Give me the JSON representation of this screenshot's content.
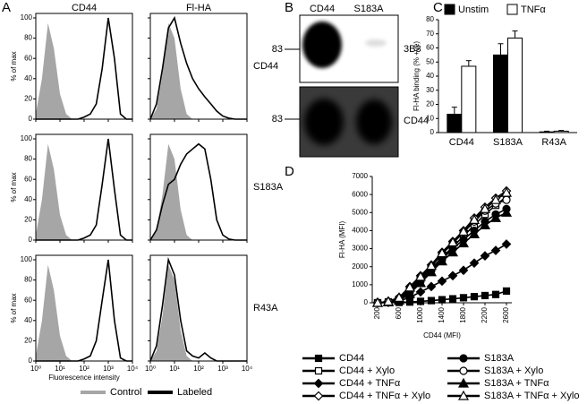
{
  "chart_data": [
    {
      "type": "area",
      "panel_label": "A",
      "column_titles": [
        "CD44",
        "Fl-HA"
      ],
      "row_titles": [
        "CD44",
        "S183A",
        "R43A"
      ],
      "y_label": "% of max",
      "x_label": "Fluorescence intensity",
      "log_x": true,
      "xlim": [
        1,
        10000
      ],
      "xticks": [
        {
          "value": 1,
          "label": "10⁰"
        },
        {
          "value": 10,
          "label": "10¹"
        },
        {
          "value": 100,
          "label": "10²"
        },
        {
          "value": 1000,
          "label": "10³"
        },
        {
          "value": 10000,
          "label": "10⁴"
        }
      ],
      "ylim": [
        0,
        100
      ],
      "yticks": [
        0,
        20,
        40,
        60,
        80,
        100
      ],
      "x": [
        1,
        1.8,
        3.2,
        5.6,
        10,
        18,
        32,
        56,
        100,
        180,
        320,
        560,
        1000,
        1800,
        3200,
        5600,
        10000
      ],
      "series": [
        {
          "name": "Control",
          "color": "#a6a6a6"
        },
        {
          "name": "Labeled",
          "color": "#000000"
        }
      ],
      "panels": [
        [
          [
            5,
            40,
            95,
            70,
            25,
            5,
            0,
            0,
            0,
            0,
            0,
            0,
            0,
            0,
            0,
            0,
            0
          ],
          [
            0,
            0,
            0,
            0,
            0,
            0,
            0,
            0,
            2,
            5,
            15,
            50,
            100,
            60,
            5,
            0,
            0
          ]
        ],
        [
          [
            0,
            10,
            45,
            95,
            80,
            30,
            5,
            0,
            0,
            0,
            0,
            0,
            0,
            0,
            0,
            0,
            0
          ],
          [
            0,
            15,
            50,
            90,
            100,
            75,
            55,
            40,
            30,
            22,
            15,
            8,
            3,
            1,
            0,
            0,
            0
          ]
        ],
        [
          [
            5,
            40,
            95,
            70,
            25,
            5,
            0,
            0,
            0,
            0,
            0,
            0,
            0,
            0,
            0,
            0,
            0
          ],
          [
            0,
            0,
            0,
            0,
            0,
            0,
            0,
            0,
            2,
            5,
            15,
            55,
            100,
            50,
            5,
            0,
            0
          ]
        ],
        [
          [
            0,
            10,
            45,
            95,
            80,
            30,
            5,
            0,
            0,
            0,
            0,
            0,
            0,
            0,
            0,
            0,
            0
          ],
          [
            0,
            10,
            35,
            55,
            60,
            75,
            85,
            90,
            95,
            90,
            60,
            20,
            5,
            1,
            0,
            0,
            0
          ]
        ],
        [
          [
            5,
            40,
            95,
            70,
            25,
            5,
            0,
            0,
            0,
            0,
            0,
            0,
            0,
            0,
            0,
            0,
            0
          ],
          [
            0,
            0,
            0,
            0,
            0,
            0,
            0,
            0,
            2,
            5,
            20,
            60,
            100,
            40,
            3,
            0,
            0
          ]
        ],
        [
          [
            0,
            10,
            45,
            95,
            80,
            30,
            5,
            0,
            0,
            0,
            0,
            0,
            0,
            0,
            0,
            0,
            0
          ],
          [
            0,
            15,
            55,
            100,
            85,
            40,
            10,
            5,
            3,
            8,
            3,
            0,
            0,
            0,
            0,
            0,
            0
          ]
        ]
      ]
    },
    {
      "type": "bar",
      "panel_label": "C",
      "y_label": "Fl-HA binding (% +ve)",
      "categories": [
        "CD44",
        "S183A",
        "R43A"
      ],
      "ylim": [
        0,
        80
      ],
      "yticks": [
        0,
        10,
        20,
        30,
        40,
        50,
        60,
        70,
        80
      ],
      "series": [
        {
          "name": "Unstim",
          "color": "#000000",
          "values": [
            13,
            55,
            0.5
          ],
          "errors": [
            5,
            8,
            0.5
          ]
        },
        {
          "name": "TNFα",
          "color": "#ffffff",
          "values": [
            47,
            67,
            1
          ],
          "errors": [
            4,
            5,
            0.5
          ]
        }
      ]
    },
    {
      "type": "line",
      "panel_label": "D",
      "x_label": "CD44 (MFI)",
      "y_label": "Fl-HA (MFI)",
      "xlim": [
        100,
        2700
      ],
      "xticks": [
        200,
        600,
        1000,
        1400,
        1800,
        2200,
        2600
      ],
      "ylim": [
        0,
        7000
      ],
      "yticks": [
        0,
        1000,
        2000,
        3000,
        4000,
        5000,
        6000,
        7000
      ],
      "x": [
        200,
        400,
        600,
        800,
        1000,
        1200,
        1400,
        1600,
        1800,
        2000,
        2200,
        2400,
        2600
      ],
      "series": [
        {
          "name": "CD44",
          "color": "#000000",
          "marker": "square",
          "fill": "filled",
          "values": [
            0,
            10,
            20,
            40,
            80,
            120,
            170,
            220,
            280,
            340,
            400,
            460,
            650
          ]
        },
        {
          "name": "CD44 + Xylo",
          "color": "#000000",
          "marker": "square",
          "fill": "open",
          "values": [
            0,
            50,
            200,
            700,
            1300,
            1900,
            2500,
            3100,
            3700,
            4300,
            4900,
            5400,
            5900
          ]
        },
        {
          "name": "CD44 + TNFα",
          "color": "#000000",
          "marker": "diamond",
          "fill": "filled",
          "values": [
            0,
            20,
            100,
            300,
            600,
            900,
            1200,
            1500,
            1800,
            2200,
            2600,
            2900,
            3250
          ]
        },
        {
          "name": "CD44 + TNFα + Xylo",
          "color": "#000000",
          "marker": "diamond",
          "fill": "open",
          "values": [
            0,
            80,
            300,
            900,
            1500,
            2100,
            2800,
            3400,
            4000,
            4700,
            5300,
            5800,
            6200
          ]
        },
        {
          "name": "S183A",
          "color": "#000000",
          "marker": "circle",
          "fill": "filled",
          "values": [
            0,
            40,
            150,
            600,
            1200,
            1800,
            2400,
            3000,
            3500,
            4000,
            4500,
            4900,
            5200
          ]
        },
        {
          "name": "S183A + Xylo",
          "color": "#000000",
          "marker": "circle",
          "fill": "open",
          "values": [
            0,
            60,
            250,
            800,
            1400,
            2000,
            2700,
            3300,
            3900,
            4500,
            5100,
            5500,
            5700
          ]
        },
        {
          "name": "S183A + TNFα",
          "color": "#000000",
          "marker": "triangle",
          "fill": "filled",
          "values": [
            0,
            30,
            120,
            500,
            1100,
            1700,
            2300,
            2800,
            3300,
            3800,
            4300,
            4700,
            5000
          ]
        },
        {
          "name": "S183A + TNFα + Xylo",
          "color": "#000000",
          "marker": "triangle",
          "fill": "open",
          "values": [
            0,
            70,
            280,
            850,
            1450,
            2050,
            2750,
            3350,
            3950,
            4600,
            5200,
            5700,
            6100
          ]
        }
      ]
    }
  ],
  "blot": {
    "panel_label": "B",
    "lanes": [
      "CD44",
      "S183A"
    ],
    "blots": [
      {
        "marker": 83,
        "antibody": "3B3"
      },
      {
        "marker": 83,
        "antibody": "CD44"
      }
    ]
  }
}
